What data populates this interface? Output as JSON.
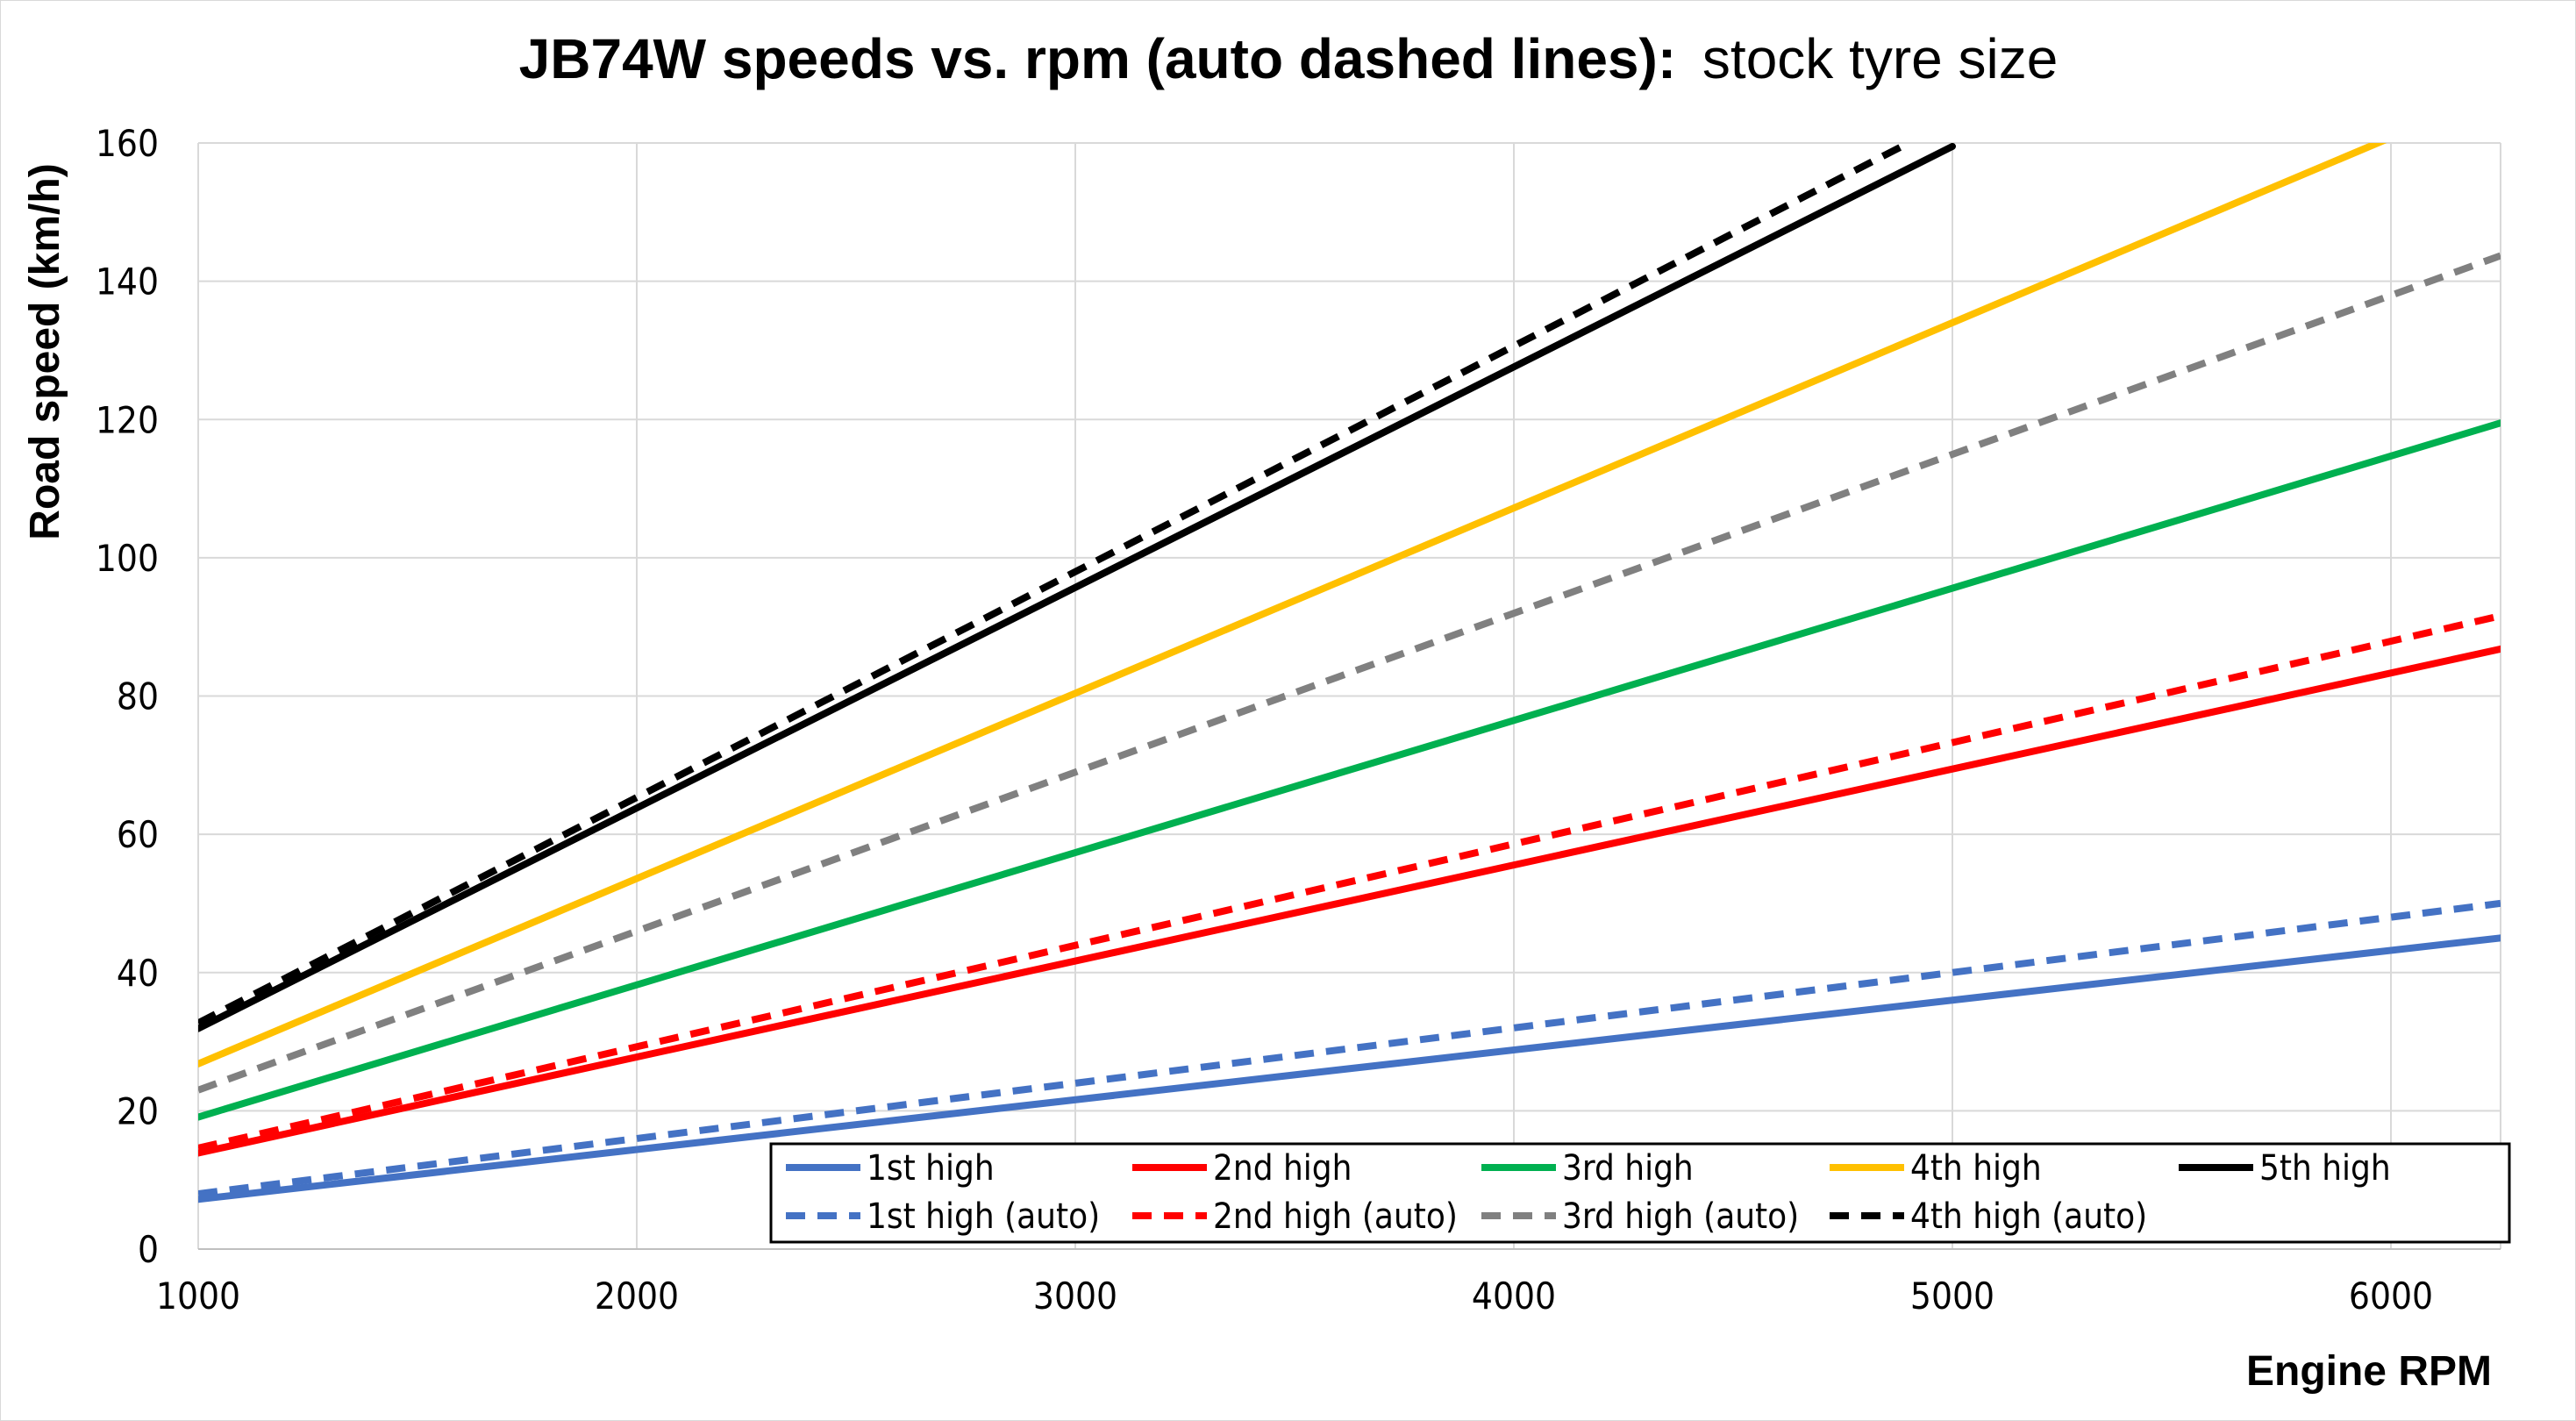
{
  "chart_data": {
    "type": "line",
    "title_bold": "JB74W speeds vs. rpm (auto dashed lines):",
    "title_regular": "stock tyre size",
    "xlabel": "Engine RPM",
    "ylabel": "Road speed (km/h)",
    "xlim": [
      1000,
      6250
    ],
    "ylim": [
      0,
      160
    ],
    "x_ticks": [
      1000,
      2000,
      3000,
      4000,
      5000,
      6000
    ],
    "y_ticks": [
      0,
      20,
      40,
      60,
      80,
      100,
      120,
      140,
      160
    ],
    "grid": true,
    "legend_position": "bottom-right",
    "series": [
      {
        "name": "1st high",
        "color": "#4472C4",
        "dashed": false,
        "x": [
          1000,
          6250
        ],
        "y": [
          7.2,
          45.0
        ]
      },
      {
        "name": "2nd high",
        "color": "#FF0000",
        "dashed": false,
        "x": [
          1000,
          6250
        ],
        "y": [
          13.9,
          86.8
        ]
      },
      {
        "name": "3rd high",
        "color": "#00B050",
        "dashed": false,
        "x": [
          1000,
          6250
        ],
        "y": [
          19.1,
          119.5
        ]
      },
      {
        "name": "4th high",
        "color": "#FFC000",
        "dashed": false,
        "x": [
          1000,
          6000
        ],
        "y": [
          26.8,
          160.8
        ]
      },
      {
        "name": "5th high",
        "color": "#000000",
        "dashed": false,
        "x": [
          1000,
          5000
        ],
        "y": [
          31.9,
          159.5
        ]
      },
      {
        "name": "1st high (auto)",
        "color": "#4472C4",
        "dashed": true,
        "x": [
          1000,
          6250
        ],
        "y": [
          8.0,
          50.0
        ]
      },
      {
        "name": "2nd high (auto)",
        "color": "#FF0000",
        "dashed": true,
        "x": [
          1000,
          6250
        ],
        "y": [
          14.6,
          91.6
        ]
      },
      {
        "name": "3rd high (auto)",
        "color": "#808080",
        "dashed": true,
        "x": [
          1000,
          6250
        ],
        "y": [
          23.0,
          143.7
        ]
      },
      {
        "name": "4th high (auto)",
        "color": "#000000",
        "dashed": true,
        "x": [
          1000,
          4900
        ],
        "y": [
          32.7,
          160.0
        ]
      }
    ]
  }
}
